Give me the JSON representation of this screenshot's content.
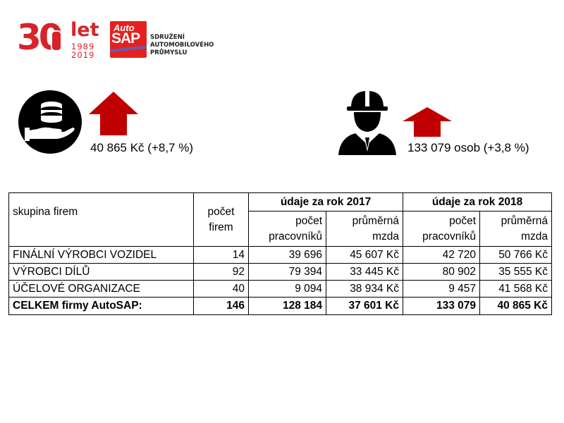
{
  "header": {
    "logo30": {
      "number": "30",
      "word": "let",
      "year_from": "1989",
      "year_to": "2019"
    },
    "autosap": {
      "auto": "Auto",
      "sap": "SAP"
    },
    "association_lines": [
      "SDRUŽENÍ",
      "AUTOMOBILOVÉHO",
      "PRŮMYSLU"
    ]
  },
  "stats": {
    "wage": {
      "icon": "money-hand-icon",
      "arrow": "up-arrow-icon",
      "text": "40 865 Kč (+8,7 %)"
    },
    "workers": {
      "icon": "worker-icon",
      "arrow": "up-arrow-icon",
      "text": "133 079 osob (+3,8 %)"
    }
  },
  "colors": {
    "brand_red": "#d8232a",
    "arrow_red": "#c00000",
    "autosap_red": "#e4211f"
  },
  "table": {
    "col_group": "skupina firem",
    "col_count_line1": "počet",
    "col_count_line2": "firem",
    "year2017": "údaje za rok 2017",
    "year2018": "údaje za rok 2018",
    "workers_line1": "počet",
    "workers_line2": "pracovníků",
    "wage_line1": "průměrná",
    "wage_line2": "mzda",
    "rows": [
      {
        "group": "FINÁLNÍ VÝROBCI VOZIDEL",
        "firms": "14",
        "w2017": "39 696",
        "m2017": "45 607 Kč",
        "w2018": "42 720",
        "m2018": "50 766 Kč"
      },
      {
        "group": "VÝROBCI DÍLŮ",
        "firms": "92",
        "w2017": "79 394",
        "m2017": "33 445 Kč",
        "w2018": "80 902",
        "m2018": "35 555 Kč"
      },
      {
        "group": "ÚČELOVÉ ORGANIZACE",
        "firms": "40",
        "w2017": "9 094",
        "m2017": "38 934 Kč",
        "w2018": "9 457",
        "m2018": "41 568 Kč"
      }
    ],
    "total": {
      "group": "CELKEM  firmy AutoSAP:",
      "firms": "146",
      "w2017": "128 184",
      "m2017": "37 601 Kč",
      "w2018": "133 079",
      "m2018": "40 865 Kč"
    }
  }
}
